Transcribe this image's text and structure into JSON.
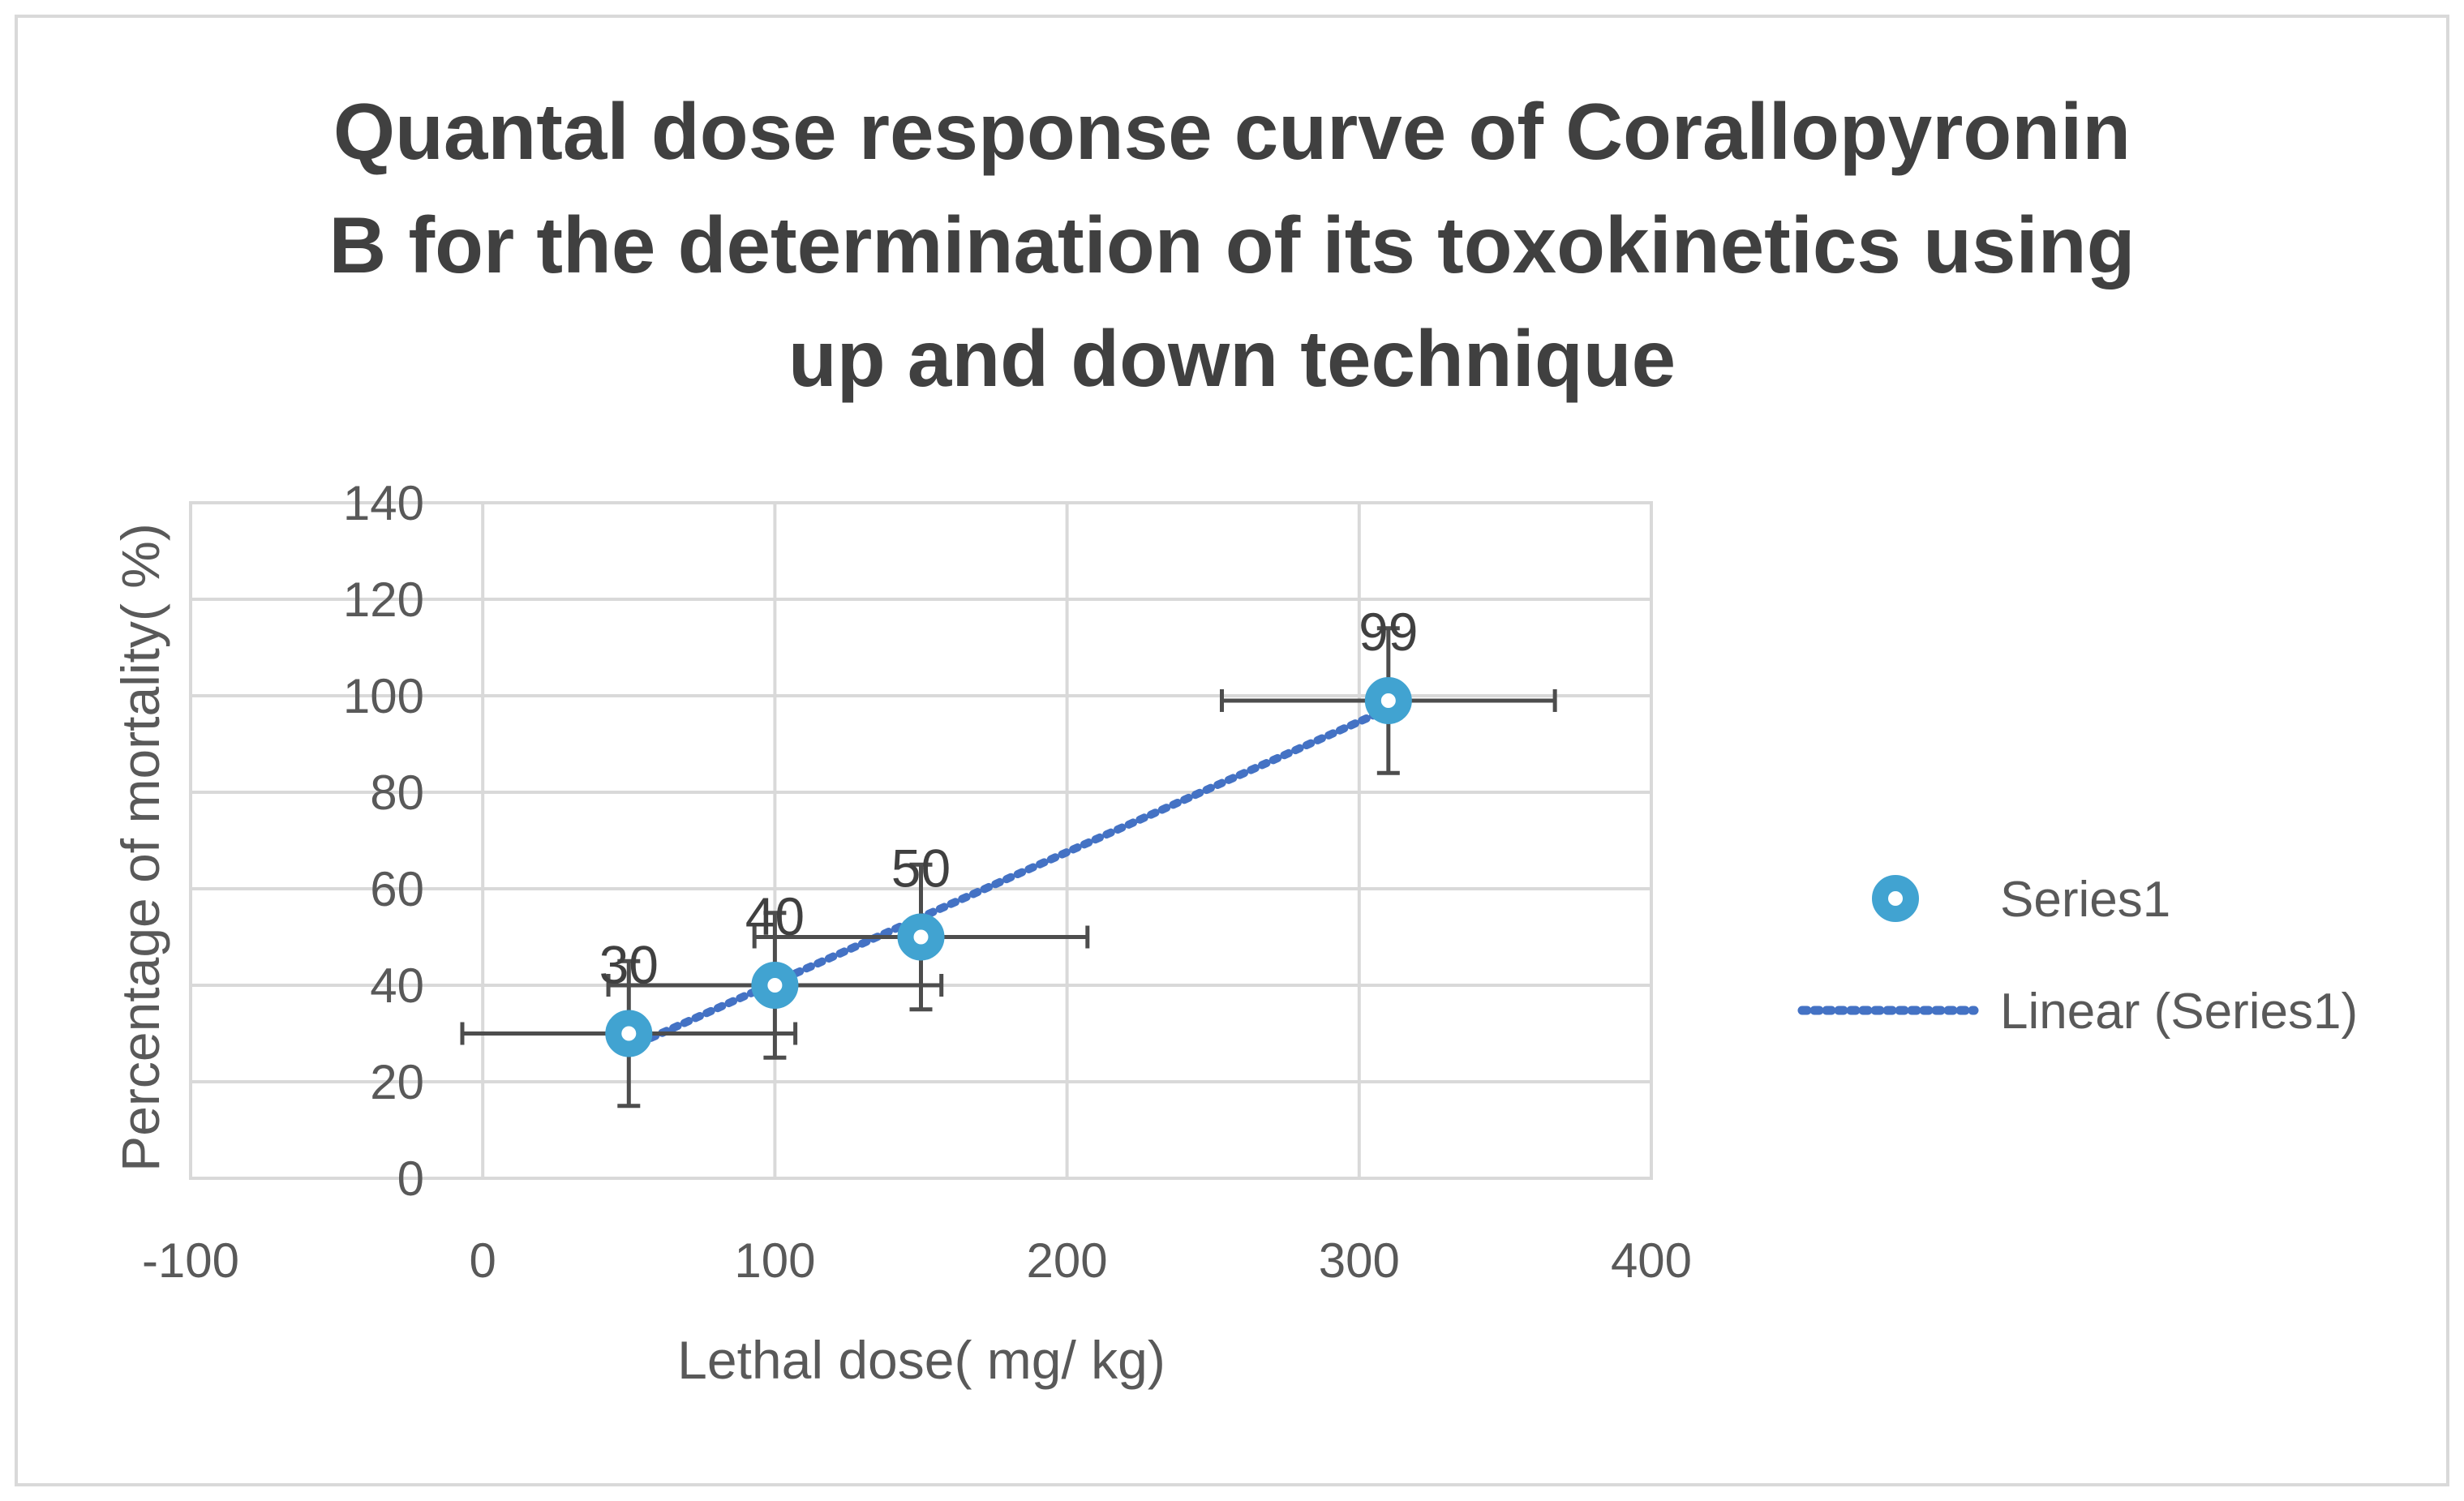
{
  "chart_data": {
    "type": "scatter",
    "title_lines": [
      "Quantal dose response curve of Corallopyronin",
      "B for the determination of its toxokinetics using",
      "up and down technique"
    ],
    "xlabel": "Lethal dose( mg/ kg)",
    "ylabel": "Percentage of mortality( %)",
    "xlim": [
      -100,
      400
    ],
    "ylim": [
      0,
      140
    ],
    "x_ticks": [
      -100,
      0,
      100,
      200,
      300,
      400
    ],
    "y_ticks": [
      0,
      20,
      40,
      60,
      80,
      100,
      120,
      140
    ],
    "grid": true,
    "legend_position": "right",
    "series": [
      {
        "name": "Series1",
        "color": "#41a3d1",
        "x": [
          50,
          100,
          150,
          310
        ],
        "y": [
          30,
          40,
          50,
          99
        ],
        "data_labels": [
          "30",
          "40",
          "50",
          "99"
        ],
        "x_error": [
          57,
          57,
          57,
          57
        ],
        "y_error": [
          15,
          15,
          15,
          15
        ]
      }
    ],
    "trendline": {
      "name": "Linear (Series1)",
      "type": "linear",
      "color": "#4472c4",
      "style": "dotted"
    },
    "colors": {
      "grid": "#d9d9d9",
      "axis_text": "#595959",
      "title": "#404040",
      "error_bar": "#4d4d4d",
      "frame": "#d9d9d9"
    }
  }
}
